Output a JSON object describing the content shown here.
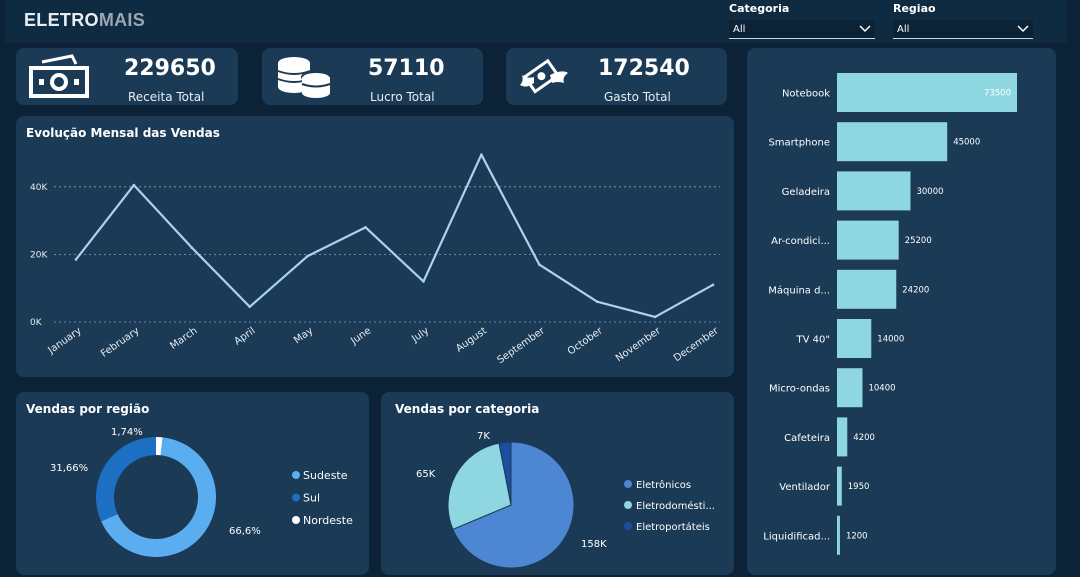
{
  "header": {
    "brand_a": "ELETRO",
    "brand_b": "MAIS"
  },
  "filters": [
    {
      "label": "Categoria",
      "value": "All"
    },
    {
      "label": "Regiao",
      "value": "All"
    }
  ],
  "kpis": [
    {
      "value": "229650",
      "label": "Receita Total",
      "icon": "cash-icon"
    },
    {
      "value": "57110",
      "label": "Lucro Total",
      "icon": "coins-icon"
    },
    {
      "value": "172540",
      "label": "Gasto Total",
      "icon": "flying-money-icon"
    }
  ],
  "colors": {
    "bg": "#0c2236",
    "card": "#1b3a55",
    "line": "#a9d4ee",
    "bar": "#8ed7e0",
    "sudeste": "#5aaef0",
    "sul": "#1c6fc2",
    "nordeste": "#ffffff",
    "eletronicos": "#4d86d2",
    "eletrodomesticos": "#8ed7e0",
    "eletroportateis": "#1a4fa0"
  },
  "chart_data": [
    {
      "type": "line",
      "title": "Evolução Mensal das Vendas",
      "categories": [
        "January",
        "February",
        "March",
        "April",
        "May",
        "June",
        "July",
        "August",
        "September",
        "October",
        "November",
        "December"
      ],
      "values": [
        18500,
        40500,
        22000,
        4500,
        19500,
        28000,
        12000,
        49500,
        17000,
        6000,
        1500,
        11000
      ],
      "yticks": [
        "0K",
        "20K",
        "40K"
      ],
      "ylim": [
        0,
        50000
      ],
      "grid": true
    },
    {
      "type": "bar",
      "orientation": "horizontal",
      "categories": [
        "Notebook",
        "Smartphone",
        "Geladeira",
        "Ar-condici...",
        "Máquina d...",
        "TV 40\"",
        "Micro-ondas",
        "Cafeteira",
        "Ventilador",
        "Liquidificad..."
      ],
      "values": [
        73500,
        45000,
        30000,
        25200,
        24200,
        14000,
        10400,
        4200,
        1950,
        1200
      ],
      "labels": [
        "73500",
        "45000",
        "30000",
        "25200",
        "24200",
        "14000",
        "10400",
        "4200",
        "1950",
        "1200"
      ]
    },
    {
      "type": "pie",
      "variant": "donut",
      "title": "Vendas por região",
      "categories": [
        "Sudeste",
        "Sul",
        "Nordeste"
      ],
      "values": [
        66.6,
        31.66,
        1.74
      ],
      "labels": [
        "66,6%",
        "31,66%",
        "1,74%"
      ],
      "legend": "right"
    },
    {
      "type": "pie",
      "title": "Vendas por categoria",
      "categories": [
        "Eletrônicos",
        "Eletrodomésti...",
        "Eletroportáteis"
      ],
      "values": [
        158,
        65,
        7
      ],
      "labels": [
        "158K",
        "65K",
        "7K"
      ],
      "legend": "right"
    }
  ]
}
